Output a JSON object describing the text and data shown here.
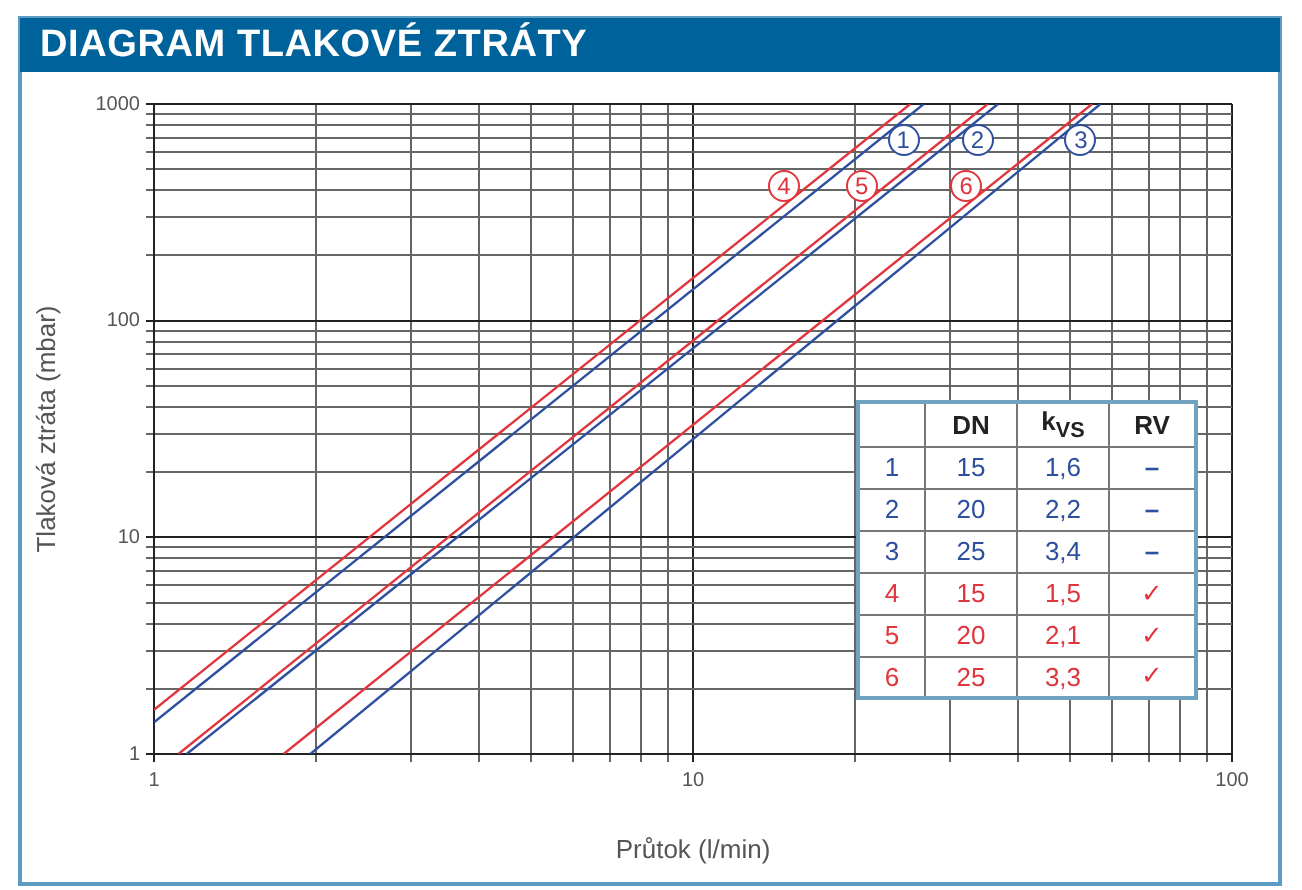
{
  "chart_data": {
    "type": "line",
    "title": "DIAGRAM TLAKOVÉ ZTRÁTY",
    "xlabel": "Průtok (l/min)",
    "ylabel": "Tlaková ztráta (mbar)",
    "log": "xy",
    "grid": true,
    "legend": "top right",
    "xlim": [
      1,
      100
    ],
    "ylim": [
      1,
      1000
    ],
    "xticks": [
      1,
      {
        "value": 2,
        "label": null
      },
      {
        "value": 3,
        "label": null
      },
      {
        "value": 4,
        "label": null
      },
      {
        "value": 5,
        "label": null
      },
      {
        "value": 6,
        "label": null
      },
      {
        "value": 7,
        "label": null
      },
      {
        "value": 8,
        "label": null
      },
      {
        "value": 9,
        "label": null
      },
      10,
      {
        "value": 20,
        "label": null
      },
      {
        "value": 30,
        "label": null
      },
      {
        "value": 40,
        "label": null
      },
      {
        "value": 50,
        "label": null
      },
      {
        "value": 60,
        "label": null
      },
      {
        "value": 70,
        "label": null
      },
      {
        "value": 80,
        "label": null
      },
      {
        "value": 90,
        "label": null
      },
      100
    ],
    "yticks": [
      1,
      {
        "value": 2,
        "label": null
      },
      {
        "value": 3,
        "label": null
      },
      {
        "value": 4,
        "label": null
      },
      {
        "value": 5,
        "label": null
      },
      {
        "value": 6,
        "label": null
      },
      {
        "value": 7,
        "label": null
      },
      {
        "value": 8,
        "label": null
      },
      {
        "value": 9,
        "label": null
      },
      10,
      {
        "value": 20,
        "label": null
      },
      {
        "value": 30,
        "label": null
      },
      {
        "value": 40,
        "label": null
      },
      {
        "value": 50,
        "label": null
      },
      {
        "value": 60,
        "label": null
      },
      {
        "value": 70,
        "label": null
      },
      {
        "value": 80,
        "label": null
      },
      {
        "value": 90,
        "label": null
      },
      100,
      {
        "value": 200,
        "label": null
      },
      {
        "value": 300,
        "label": null
      },
      {
        "value": 400,
        "label": null
      },
      {
        "value": 500,
        "label": null
      },
      {
        "value": 600,
        "label": null
      },
      {
        "value": 700,
        "label": null
      },
      {
        "value": 800,
        "label": null
      },
      {
        "value": 900,
        "label": null
      },
      1000
    ],
    "series": [
      {
        "name": "1",
        "color": "#2d4f9e",
        "x": [
          1,
          26.8
        ],
        "values": [
          1.4,
          1000
        ]
      },
      {
        "name": "2",
        "color": "#2d4f9e",
        "x": [
          1.15,
          36.8
        ],
        "values": [
          1,
          1000
        ]
      },
      {
        "name": "3",
        "color": "#2d4f9e",
        "x": [
          1.95,
          57
        ],
        "values": [
          1,
          1000
        ]
      },
      {
        "name": "4",
        "color": "#e0353c",
        "x": [
          1,
          25.3
        ],
        "values": [
          1.6,
          1000
        ]
      },
      {
        "name": "5",
        "color": "#e0353c",
        "x": [
          1.11,
          35.2
        ],
        "values": [
          1,
          1000
        ]
      },
      {
        "name": "6",
        "color": "#e0353c",
        "x": [
          1.74,
          55
        ],
        "values": [
          1,
          1000
        ]
      }
    ],
    "annotations": [
      "DN",
      "k$_{VS}$",
      "RV",
      "15",
      "1,6",
      "–",
      "20",
      "2,2",
      "–",
      "25",
      "3,4",
      "–",
      "15",
      "1,5",
      "✓",
      "20",
      "2,1",
      "✓",
      "25",
      "3,3",
      "✓"
    ]
  }
}
